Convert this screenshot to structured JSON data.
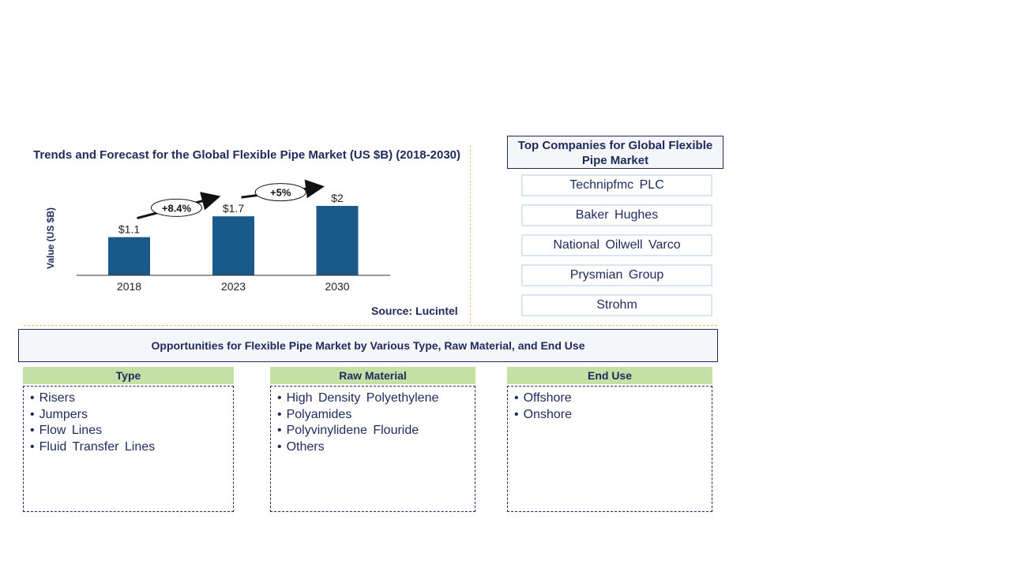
{
  "chart_data": {
    "type": "bar",
    "title": "Trends and Forecast for the Global Flexible Pipe Market (US $B) (2018-2030)",
    "categories": [
      "2018",
      "2023",
      "2030"
    ],
    "values": [
      1.1,
      1.7,
      2
    ],
    "value_labels": [
      "$1.1",
      "$1.7",
      "$2"
    ],
    "ylabel": "Value (US $B)",
    "xlabel": "",
    "growth_annotations": [
      "+8.4%",
      "+5%"
    ],
    "bar_color": "#1a5a8a"
  },
  "source": "Source: Lucintel",
  "top_companies": {
    "title": "Top Companies for Global Flexible Pipe Market",
    "items": [
      "Technipfmc PLC",
      "Baker Hughes",
      "National Oilwell Varco",
      "Prysmian Group",
      "Strohm"
    ]
  },
  "opportunities": {
    "title": "Opportunities for  Flexible Pipe Market by Various Type, Raw Material, and End Use",
    "segments": [
      {
        "name": "Type",
        "items": [
          "Risers",
          "Jumpers",
          "Flow Lines",
          "Fluid Transfer Lines"
        ]
      },
      {
        "name": "Raw Material",
        "items": [
          "High Density Polyethylene",
          "Polyamides",
          "Polyvinylidene Flouride",
          "Others"
        ]
      },
      {
        "name": "End Use",
        "items": [
          "Offshore",
          "Onshore"
        ]
      }
    ]
  }
}
